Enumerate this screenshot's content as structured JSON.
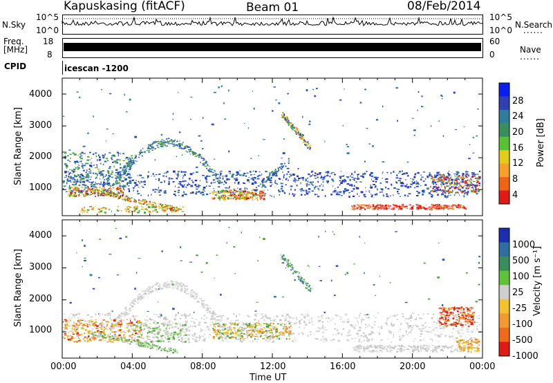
{
  "header": {
    "station": "Kapuskasing (fitACF)",
    "beam": "Beam 01",
    "date": "08/Feb/2014"
  },
  "status_panels": {
    "nsky_label": "N.Sky",
    "nsky_ticks": [
      "10^5",
      "10^0"
    ],
    "nsearch_label": "N.Search",
    "nsearch_ticks": [
      "10^5",
      "10^0"
    ],
    "freq_label_1": "Freq.",
    "freq_label_2": "[MHz]",
    "freq_ticks": [
      "18",
      "8"
    ],
    "nave_label": "Nave",
    "nave_ticks": [
      "60",
      "0"
    ],
    "cpid_label": "CPID",
    "cpid_value": "icescan -1200",
    "dots": "......"
  },
  "chart_data": [
    {
      "type": "heatmap",
      "name": "power",
      "ylabel": "Slant Range [km]",
      "ylim": [
        180,
        4500
      ],
      "yticks": [
        "1000",
        "2000",
        "3000",
        "4000"
      ],
      "colorbar_label": "Power [dB]",
      "colorbar_ticks": [
        "28",
        "24",
        "20",
        "16",
        "12",
        "8",
        "4"
      ],
      "colorbar_colors": [
        "#0a1ef0",
        "#2f3fb6",
        "#2f7d9c",
        "#3a8e5c",
        "#58c234",
        "#e3cc1a",
        "#f7a02a",
        "#f06418",
        "#e01a14"
      ]
    },
    {
      "type": "heatmap",
      "name": "velocity",
      "ylabel": "Slant Range [km]",
      "ylim": [
        180,
        4500
      ],
      "yticks": [
        "1000",
        "2000",
        "3000",
        "4000"
      ],
      "colorbar_label": "Velocity [m s⁻¹]",
      "colorbar_ticks": [
        "1000",
        "500",
        "100",
        "25",
        "-25",
        "-100",
        "-500",
        "-1000"
      ],
      "colorbar_colors": [
        "#1a2fb0",
        "#2f6fa0",
        "#3a8e5c",
        "#5fc23a",
        "#cfcfcf",
        "#f2c230",
        "#f29a30",
        "#ef6a1a",
        "#e01a14"
      ]
    }
  ],
  "x_axis": {
    "ticks": [
      "00:00",
      "04:00",
      "08:00",
      "12:00",
      "16:00",
      "20:00",
      "00:00"
    ],
    "label": "Time UT"
  },
  "colors": {
    "blue": "#2a48c8",
    "teal": "#2f7d9c",
    "green": "#4aa63a",
    "yellow": "#e8c420",
    "orange": "#f08a24",
    "red": "#d81e18",
    "grey": "#cfcfcf"
  }
}
